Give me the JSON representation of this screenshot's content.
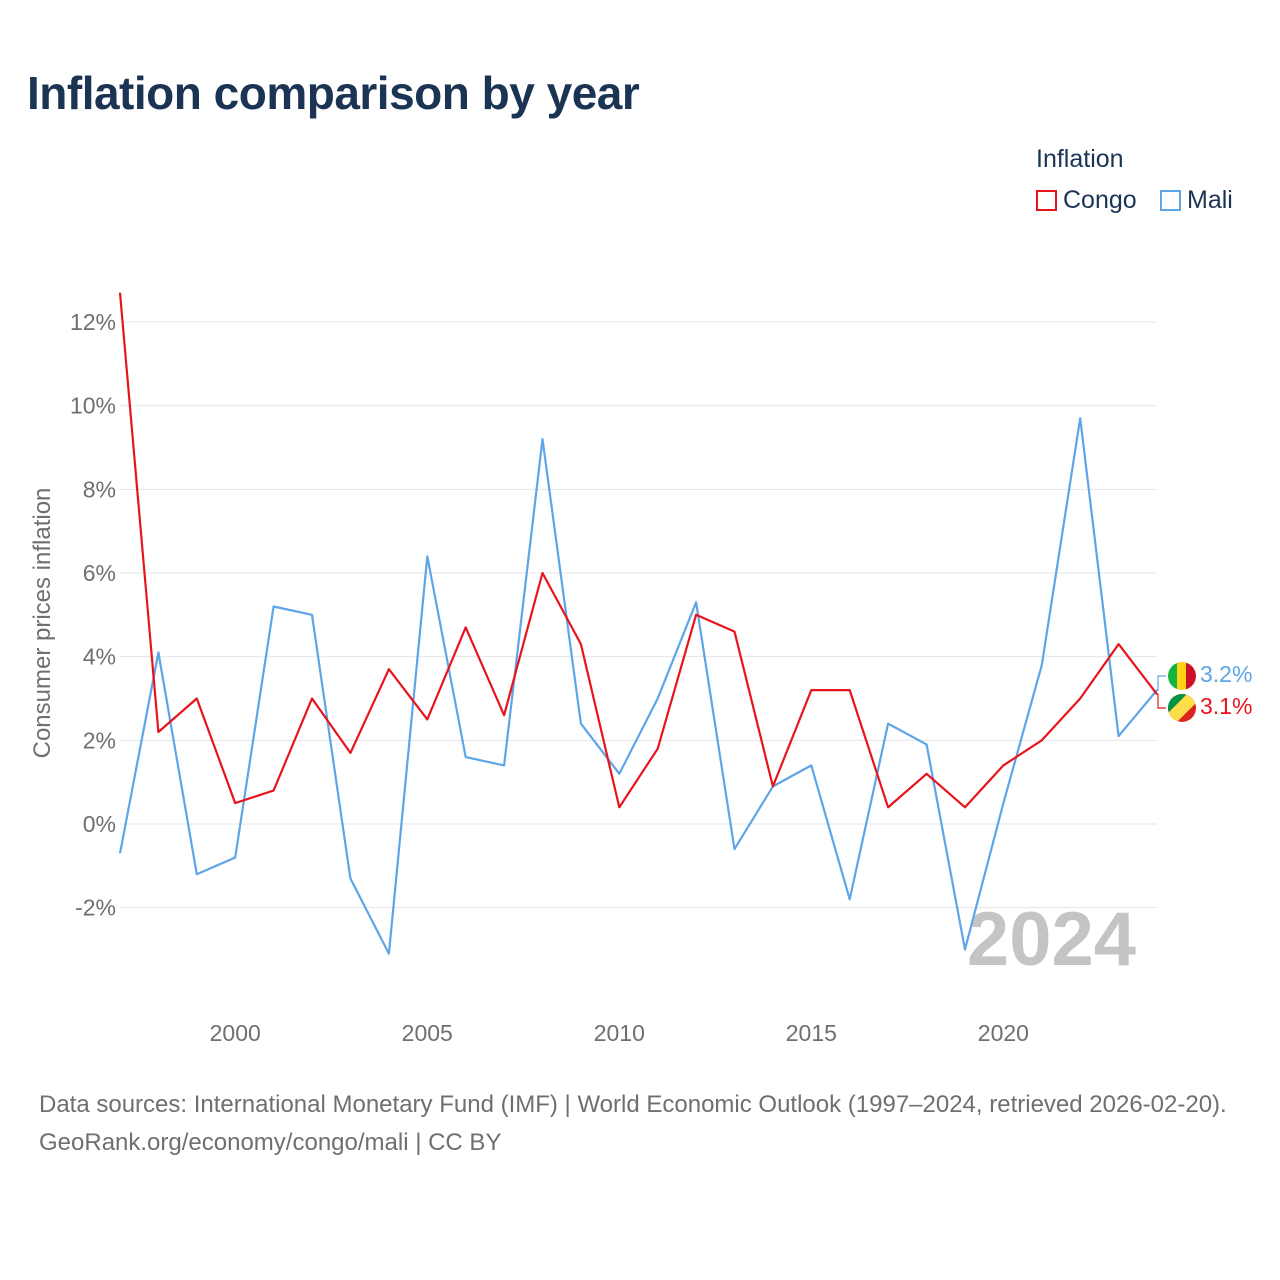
{
  "header": {
    "title": "Inflation comparison by year"
  },
  "legend": {
    "title": "Inflation",
    "items": [
      {
        "label": "Congo",
        "color": "#e8141c"
      },
      {
        "label": "Mali",
        "color": "#5ea5e8"
      }
    ]
  },
  "chart_data": {
    "type": "line",
    "title": "Inflation comparison by year",
    "ylabel": "Consumer prices inflation",
    "xlabel": "",
    "x": [
      1997,
      1998,
      1999,
      2000,
      2001,
      2002,
      2003,
      2004,
      2005,
      2006,
      2007,
      2008,
      2009,
      2010,
      2011,
      2012,
      2013,
      2014,
      2015,
      2016,
      2017,
      2018,
      2019,
      2020,
      2021,
      2022,
      2023,
      2024
    ],
    "xlim": [
      1997,
      2024
    ],
    "ylim": [
      -4,
      13
    ],
    "x_ticks": [
      {
        "value": 2000,
        "label": "2000"
      },
      {
        "value": 2005,
        "label": "2005"
      },
      {
        "value": 2010,
        "label": "2010"
      },
      {
        "value": 2015,
        "label": "2015"
      },
      {
        "value": 2020,
        "label": "2020"
      }
    ],
    "y_ticks": [
      {
        "value": 12,
        "label": "12%"
      },
      {
        "value": 10,
        "label": "10%"
      },
      {
        "value": 8,
        "label": "8%"
      },
      {
        "value": 6,
        "label": "6%"
      },
      {
        "value": 4,
        "label": "4%"
      },
      {
        "value": 2,
        "label": "2%"
      },
      {
        "value": 0,
        "label": "0%"
      },
      {
        "value": -2,
        "label": "-2%"
      }
    ],
    "grid": true,
    "series": [
      {
        "name": "Congo",
        "color": "#e8141c",
        "values": [
          12.7,
          2.2,
          3.0,
          0.5,
          0.8,
          3.0,
          1.7,
          3.7,
          2.5,
          4.7,
          2.6,
          6.0,
          4.3,
          0.4,
          1.8,
          5.0,
          4.6,
          0.9,
          3.2,
          3.2,
          0.4,
          1.2,
          0.4,
          1.4,
          2.0,
          3.0,
          4.3,
          3.1
        ],
        "end_label": "3.1%"
      },
      {
        "name": "Mali",
        "color": "#5ea5e8",
        "values": [
          -0.7,
          4.1,
          -1.2,
          -0.8,
          5.2,
          5.0,
          -1.3,
          -3.1,
          6.4,
          1.6,
          1.4,
          9.2,
          2.4,
          1.2,
          3.0,
          5.3,
          -0.6,
          0.9,
          1.4,
          -1.8,
          2.4,
          1.9,
          -3.0,
          0.5,
          3.8,
          9.7,
          2.1,
          3.2
        ],
        "end_label": "3.2%"
      }
    ],
    "year_watermark": "2024"
  },
  "footer": {
    "line1": "Data sources: International Monetary Fund (IMF) | World Economic Outlook (1997–2024, retrieved 2026-02-20).",
    "line2": "GeoRank.org/economy/congo/mali | CC BY"
  }
}
